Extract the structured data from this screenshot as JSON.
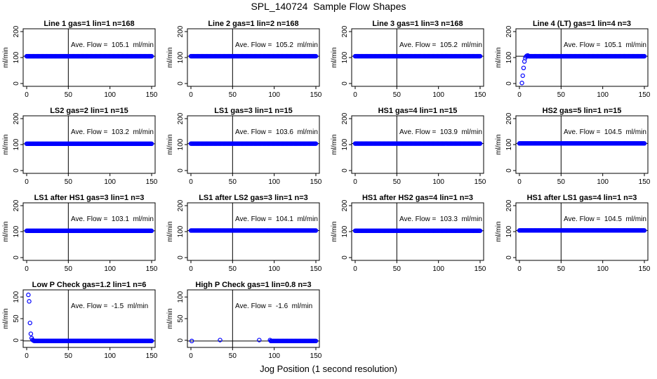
{
  "figure": {
    "title": "SPL_140724  Sample Flow Shapes",
    "xlabel": "Jog Position (1 second resolution)"
  },
  "colors": {
    "points": "#0000ff",
    "axes": "#000000"
  },
  "chart_data": [
    {
      "type": "scatter",
      "title": "Line 1 gas=1 lin=1 n=168",
      "ylabel": "ml/min",
      "annotation": "Ave. Flow =  105.1  ml/min",
      "xlim": [
        0,
        150
      ],
      "ylim": [
        0,
        200
      ],
      "xticks": [
        0,
        50,
        100,
        150
      ],
      "yticks": [
        0,
        100,
        200
      ],
      "vline_x": 50,
      "hline_y": 105.1,
      "series": [
        {
          "x_range": [
            0,
            150
          ],
          "y": 105.1
        }
      ]
    },
    {
      "type": "scatter",
      "title": "Line 2 gas=1 lin=2 n=168",
      "ylabel": "ml/min",
      "annotation": "Ave. Flow =  105.2  ml/min",
      "xlim": [
        0,
        150
      ],
      "ylim": [
        0,
        200
      ],
      "xticks": [
        0,
        50,
        100,
        150
      ],
      "yticks": [
        0,
        100,
        200
      ],
      "vline_x": 50,
      "hline_y": 105.2,
      "series": [
        {
          "x_range": [
            0,
            150
          ],
          "y": 105.2
        }
      ]
    },
    {
      "type": "scatter",
      "title": "Line 3 gas=1 lin=3 n=168",
      "ylabel": "ml/min",
      "annotation": "Ave. Flow =  105.2  ml/min",
      "xlim": [
        0,
        150
      ],
      "ylim": [
        0,
        200
      ],
      "xticks": [
        0,
        50,
        100,
        150
      ],
      "yticks": [
        0,
        100,
        200
      ],
      "vline_x": 50,
      "hline_y": 105.2,
      "series": [
        {
          "x_range": [
            0,
            150
          ],
          "y": 105.2
        }
      ]
    },
    {
      "type": "scatter",
      "title": "Line 4 (LT) gas=1 lin=4 n=3",
      "ylabel": "ml/min",
      "annotation": "Ave. Flow =  105.1  ml/min",
      "xlim": [
        0,
        150
      ],
      "ylim": [
        0,
        200
      ],
      "xticks": [
        0,
        50,
        100,
        150
      ],
      "yticks": [
        0,
        100,
        200
      ],
      "vline_x": 50,
      "hline_y": 105.1,
      "series": [
        {
          "x_range": [
            0,
            150
          ],
          "y": 105.1,
          "start": [
            [
              3,
              2
            ],
            [
              4,
              30
            ],
            [
              5,
              60
            ],
            [
              6,
              85
            ],
            [
              7,
              98
            ],
            [
              8,
              104
            ],
            [
              9,
              107
            ],
            [
              10,
              108
            ]
          ]
        }
      ]
    },
    {
      "type": "scatter",
      "title": "LS2 gas=2 lin=1 n=15",
      "ylabel": "ml/min",
      "annotation": "Ave. Flow =  103.2  ml/min",
      "xlim": [
        0,
        150
      ],
      "ylim": [
        0,
        200
      ],
      "xticks": [
        0,
        50,
        100,
        150
      ],
      "yticks": [
        0,
        100,
        200
      ],
      "vline_x": 50,
      "hline_y": 103.2,
      "series": [
        {
          "x_range": [
            0,
            150
          ],
          "y": 103.2
        }
      ]
    },
    {
      "type": "scatter",
      "title": "LS1 gas=3 lin=1 n=15",
      "ylabel": "ml/min",
      "annotation": "Ave. Flow =  103.6  ml/min",
      "xlim": [
        0,
        150
      ],
      "ylim": [
        0,
        200
      ],
      "xticks": [
        0,
        50,
        100,
        150
      ],
      "yticks": [
        0,
        100,
        200
      ],
      "vline_x": 50,
      "hline_y": 103.6,
      "series": [
        {
          "x_range": [
            0,
            150
          ],
          "y": 103.6
        }
      ]
    },
    {
      "type": "scatter",
      "title": "HS1 gas=4 lin=1 n=15",
      "ylabel": "ml/min",
      "annotation": "Ave. Flow =  103.9  ml/min",
      "xlim": [
        0,
        150
      ],
      "ylim": [
        0,
        200
      ],
      "xticks": [
        0,
        50,
        100,
        150
      ],
      "yticks": [
        0,
        100,
        200
      ],
      "vline_x": 50,
      "hline_y": 103.9,
      "series": [
        {
          "x_range": [
            0,
            150
          ],
          "y": 103.9
        }
      ]
    },
    {
      "type": "scatter",
      "title": "HS2 gas=5 lin=1 n=15",
      "ylabel": "ml/min",
      "annotation": "Ave. Flow =  104.5  ml/min",
      "xlim": [
        0,
        150
      ],
      "ylim": [
        0,
        200
      ],
      "xticks": [
        0,
        50,
        100,
        150
      ],
      "yticks": [
        0,
        100,
        200
      ],
      "vline_x": 50,
      "hline_y": 104.5,
      "series": [
        {
          "x_range": [
            0,
            150
          ],
          "y": 104.5
        }
      ]
    },
    {
      "type": "scatter",
      "title": "LS1 after HS1 gas=3 lin=1 n=3",
      "ylabel": "ml/min",
      "annotation": "Ave. Flow =  103.1  ml/min",
      "xlim": [
        0,
        150
      ],
      "ylim": [
        0,
        200
      ],
      "xticks": [
        0,
        50,
        100,
        150
      ],
      "yticks": [
        0,
        100,
        200
      ],
      "vline_x": 50,
      "hline_y": 103.1,
      "series": [
        {
          "x_range": [
            0,
            150
          ],
          "y": 103.1
        }
      ]
    },
    {
      "type": "scatter",
      "title": "LS1 after LS2 gas=3 lin=1 n=3",
      "ylabel": "ml/min",
      "annotation": "Ave. Flow =  104.1  ml/min",
      "xlim": [
        0,
        150
      ],
      "ylim": [
        0,
        200
      ],
      "xticks": [
        0,
        50,
        100,
        150
      ],
      "yticks": [
        0,
        100,
        200
      ],
      "vline_x": 50,
      "hline_y": 104.1,
      "series": [
        {
          "x_range": [
            0,
            150
          ],
          "y": 104.1
        }
      ]
    },
    {
      "type": "scatter",
      "title": "HS1 after HS2 gas=4 lin=1 n=3",
      "ylabel": "ml/min",
      "annotation": "Ave. Flow =  103.3  ml/min",
      "xlim": [
        0,
        150
      ],
      "ylim": [
        0,
        200
      ],
      "xticks": [
        0,
        50,
        100,
        150
      ],
      "yticks": [
        0,
        100,
        200
      ],
      "vline_x": 50,
      "hline_y": 103.3,
      "series": [
        {
          "x_range": [
            0,
            150
          ],
          "y": 103.3
        }
      ]
    },
    {
      "type": "scatter",
      "title": "HS1 after LS1 gas=4 lin=1 n=3",
      "ylabel": "ml/min",
      "annotation": "Ave. Flow =  104.5  ml/min",
      "xlim": [
        0,
        150
      ],
      "ylim": [
        0,
        200
      ],
      "xticks": [
        0,
        50,
        100,
        150
      ],
      "yticks": [
        0,
        100,
        200
      ],
      "vline_x": 50,
      "hline_y": 104.5,
      "series": [
        {
          "x_range": [
            0,
            150
          ],
          "y": 104.5
        }
      ]
    },
    {
      "type": "scatter",
      "title": "Low P Check gas=1.2 lin=1 n=6",
      "ylabel": "ml/min",
      "annotation": "Ave. Flow =  -1.5  ml/min",
      "xlim": [
        0,
        150
      ],
      "ylim": [
        -10,
        110
      ],
      "xticks": [
        0,
        50,
        100,
        150
      ],
      "yticks": [
        0,
        50,
        100
      ],
      "vline_x": 50,
      "hline_y": -1.5,
      "series": [
        {
          "x_range": [
            0,
            150
          ],
          "y": -1.5,
          "start": [
            [
              2,
              105
            ],
            [
              3,
              90
            ],
            [
              4,
              40
            ],
            [
              5,
              15
            ],
            [
              6,
              5
            ],
            [
              7,
              1
            ],
            [
              8,
              -0.5
            ]
          ]
        }
      ]
    },
    {
      "type": "scatter",
      "title": "High P Check gas=1 lin=0.8 n=3",
      "ylabel": "ml/min",
      "annotation": "Ave. Flow =  -1.6  ml/min",
      "xlim": [
        0,
        150
      ],
      "ylim": [
        -10,
        110
      ],
      "xticks": [
        0,
        50,
        100,
        150
      ],
      "yticks": [
        0,
        50,
        100
      ],
      "vline_x": 50,
      "hline_y": -1.6,
      "series": [
        {
          "x_range": [
            0,
            150
          ],
          "y": -1.6,
          "start": [
            [
              1,
              -1.6
            ],
            [
              35,
              0.5
            ],
            [
              82,
              0.5
            ],
            [
              95,
              0.5
            ]
          ]
        }
      ]
    }
  ]
}
